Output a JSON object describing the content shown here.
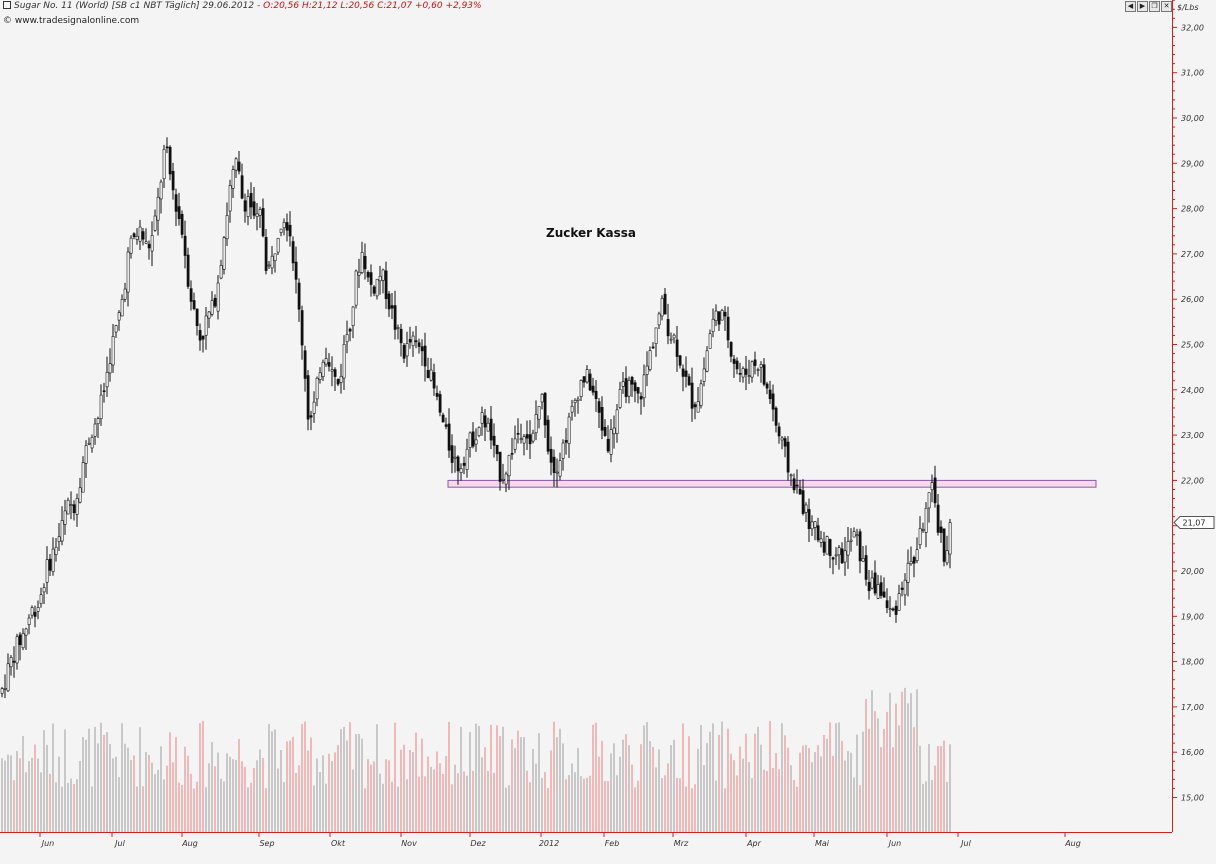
{
  "header": {
    "instrument": "Sugar No. 11 (World) [SB c1 NBT Täglich] 29.06.2012 -",
    "ohlc_text": "O:20,56 H:21,12 L:20,56 C:21,07 +0,60 +2,93%",
    "brand": "www.tradesignalonline.com",
    "unit": "$/Lbs"
  },
  "toolbar": {
    "buttons": [
      "◀",
      "▶",
      "❐",
      "✕"
    ]
  },
  "annotation": {
    "text": "Zucker Kassa"
  },
  "colors": {
    "background": "#f4f4f4",
    "candle": "#111111",
    "volume_up": "#c8c8c8",
    "volume_down": "#f0b8b8",
    "support_zone_fill": "#f6d8ec",
    "support_zone_stroke": "#8a5aa8",
    "axis": "#cc2222",
    "last_price_label": "#ffffff"
  },
  "chart_data": {
    "type": "candlestick",
    "title": "Zucker Kassa",
    "ylabel": "$/Lbs",
    "ylim": [
      14.2,
      32.6
    ],
    "y_ticks": [
      "15,00",
      "16,00",
      "17,00",
      "18,00",
      "19,00",
      "20,00",
      "21,00",
      "22,00",
      "23,00",
      "24,00",
      "25,00",
      "26,00",
      "27,00",
      "28,00",
      "29,00",
      "30,00",
      "31,00",
      "32,00"
    ],
    "x_ticks": [
      "Jun",
      "Jul",
      "Aug",
      "Sep",
      "Okt",
      "Nov",
      "Dez",
      "2012",
      "Feb",
      "Mrz",
      "Apr",
      "Mai",
      "Jun",
      "Jul",
      "Aug"
    ],
    "last_price": "21,07",
    "support_zone": [
      21.85,
      22.0
    ],
    "price_path": [
      [
        0,
        17.3
      ],
      [
        8,
        17.9
      ],
      [
        15,
        18.3
      ],
      [
        22,
        18.6
      ],
      [
        30,
        19.1
      ],
      [
        38,
        19.3
      ],
      [
        45,
        20.0
      ],
      [
        52,
        20.4
      ],
      [
        60,
        20.9
      ],
      [
        66,
        21.4
      ],
      [
        74,
        21.5
      ],
      [
        82,
        22.4
      ],
      [
        90,
        23.1
      ],
      [
        97,
        23.4
      ],
      [
        104,
        24.1
      ],
      [
        110,
        24.9
      ],
      [
        116,
        25.4
      ],
      [
        122,
        26.1
      ],
      [
        128,
        27.1
      ],
      [
        134,
        27.4
      ],
      [
        140,
        27.5
      ],
      [
        146,
        27.1
      ],
      [
        152,
        27.4
      ],
      [
        158,
        28.3
      ],
      [
        164,
        29.4
      ],
      [
        170,
        28.6
      ],
      [
        176,
        28.0
      ],
      [
        182,
        27.4
      ],
      [
        188,
        26.3
      ],
      [
        194,
        25.6
      ],
      [
        200,
        25.1
      ],
      [
        206,
        25.6
      ],
      [
        212,
        25.8
      ],
      [
        218,
        26.6
      ],
      [
        224,
        27.6
      ],
      [
        230,
        28.6
      ],
      [
        236,
        29.0
      ],
      [
        242,
        28.1
      ],
      [
        248,
        28.3
      ],
      [
        254,
        27.6
      ],
      [
        260,
        27.9
      ],
      [
        266,
        26.6
      ],
      [
        272,
        26.9
      ],
      [
        278,
        27.7
      ],
      [
        284,
        27.9
      ],
      [
        290,
        27.4
      ],
      [
        296,
        26.1
      ],
      [
        302,
        24.9
      ],
      [
        308,
        23.2
      ],
      [
        314,
        23.7
      ],
      [
        320,
        24.7
      ],
      [
        326,
        24.9
      ],
      [
        332,
        24.3
      ],
      [
        338,
        24.1
      ],
      [
        344,
        25.1
      ],
      [
        350,
        25.6
      ],
      [
        356,
        26.6
      ],
      [
        362,
        27.1
      ],
      [
        368,
        26.3
      ],
      [
        374,
        26.3
      ],
      [
        380,
        26.6
      ],
      [
        386,
        26.1
      ],
      [
        392,
        25.6
      ],
      [
        398,
        25.1
      ],
      [
        404,
        24.8
      ],
      [
        410,
        25.1
      ],
      [
        416,
        24.9
      ],
      [
        422,
        24.9
      ],
      [
        428,
        24.4
      ],
      [
        434,
        23.9
      ],
      [
        440,
        23.4
      ],
      [
        446,
        22.9
      ],
      [
        452,
        22.5
      ],
      [
        458,
        22.3
      ],
      [
        464,
        22.6
      ],
      [
        470,
        22.9
      ],
      [
        476,
        23.1
      ],
      [
        482,
        23.4
      ],
      [
        488,
        23.1
      ],
      [
        494,
        22.5
      ],
      [
        500,
        22.1
      ],
      [
        506,
        22.3
      ],
      [
        512,
        22.8
      ],
      [
        518,
        23.1
      ],
      [
        524,
        23.2
      ],
      [
        530,
        22.6
      ],
      [
        536,
        23.6
      ],
      [
        542,
        23.8
      ],
      [
        548,
        22.6
      ],
      [
        554,
        22.3
      ],
      [
        560,
        22.6
      ],
      [
        566,
        23.1
      ],
      [
        572,
        23.6
      ],
      [
        578,
        24.1
      ],
      [
        584,
        24.3
      ],
      [
        590,
        24.1
      ],
      [
        596,
        23.6
      ],
      [
        602,
        23.1
      ],
      [
        608,
        22.8
      ],
      [
        614,
        23.4
      ],
      [
        620,
        23.9
      ],
      [
        626,
        24.1
      ],
      [
        632,
        23.9
      ],
      [
        638,
        23.8
      ],
      [
        644,
        24.3
      ],
      [
        650,
        24.9
      ],
      [
        656,
        25.5
      ],
      [
        662,
        25.9
      ],
      [
        668,
        25.3
      ],
      [
        674,
        25.1
      ],
      [
        680,
        24.6
      ],
      [
        686,
        24.1
      ],
      [
        692,
        23.7
      ],
      [
        698,
        23.9
      ],
      [
        704,
        24.6
      ],
      [
        710,
        25.4
      ],
      [
        716,
        25.7
      ],
      [
        722,
        25.6
      ],
      [
        728,
        25.1
      ],
      [
        734,
        24.6
      ],
      [
        740,
        24.3
      ],
      [
        746,
        24.4
      ],
      [
        752,
        24.6
      ],
      [
        758,
        24.6
      ],
      [
        764,
        24.1
      ],
      [
        770,
        23.8
      ],
      [
        776,
        23.1
      ],
      [
        782,
        22.7
      ],
      [
        788,
        22.2
      ],
      [
        794,
        21.9
      ],
      [
        800,
        21.6
      ],
      [
        806,
        21.2
      ],
      [
        812,
        20.9
      ],
      [
        818,
        20.8
      ],
      [
        824,
        20.6
      ],
      [
        830,
        20.5
      ],
      [
        836,
        20.4
      ],
      [
        842,
        20.3
      ],
      [
        848,
        20.6
      ],
      [
        854,
        20.8
      ],
      [
        860,
        20.3
      ],
      [
        866,
        19.8
      ],
      [
        872,
        19.6
      ],
      [
        878,
        19.7
      ],
      [
        884,
        19.3
      ],
      [
        890,
        19.0
      ],
      [
        896,
        19.3
      ],
      [
        902,
        19.8
      ],
      [
        908,
        20.1
      ],
      [
        914,
        20.3
      ],
      [
        920,
        20.9
      ],
      [
        926,
        21.4
      ],
      [
        932,
        21.8
      ],
      [
        938,
        20.9
      ],
      [
        944,
        20.3
      ],
      [
        950,
        21.07
      ]
    ]
  }
}
